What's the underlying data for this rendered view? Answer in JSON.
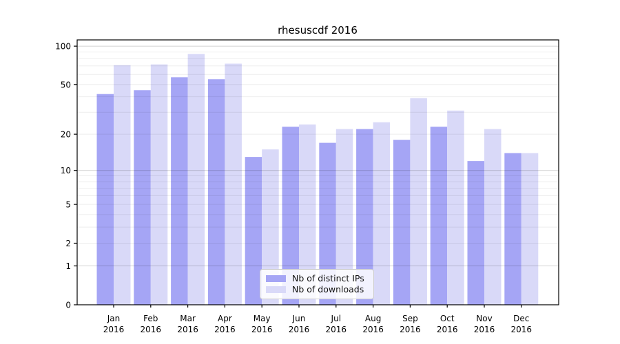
{
  "chart_data": {
    "type": "bar",
    "title": "rhesuscdf 2016",
    "year": "2016",
    "categories": [
      "Jan",
      "Feb",
      "Mar",
      "Apr",
      "May",
      "Jun",
      "Jul",
      "Aug",
      "Sep",
      "Oct",
      "Nov",
      "Dec"
    ],
    "series": [
      {
        "name": "Nb of distinct IPs",
        "color": "#a5a5f5",
        "values": [
          42,
          45,
          57,
          55,
          13,
          23,
          17,
          22,
          18,
          23,
          12,
          14
        ]
      },
      {
        "name": "Nb of downloads",
        "color": "#d9d9f8",
        "values": [
          71,
          72,
          87,
          73,
          15,
          24,
          22,
          25,
          39,
          31,
          22,
          14
        ]
      }
    ],
    "xlabel": "",
    "ylabel": "",
    "yscale": "log1p",
    "ylim": [
      0,
      112
    ],
    "yticks": [
      0,
      1,
      2,
      5,
      10,
      20,
      50,
      100
    ],
    "major_gridlines": [
      1,
      10,
      100
    ],
    "minor_gridlines": [
      2,
      3,
      4,
      5,
      6,
      7,
      8,
      9,
      20,
      30,
      40,
      50,
      60,
      70,
      80,
      90
    ],
    "grid": true,
    "legend_position": "lower-center",
    "colors": {
      "axis": "#000000",
      "text": "#000000",
      "major_grid": "rgba(0,0,0,0.18)",
      "minor_grid": "rgba(0,0,0,0.07)",
      "background": "#ffffff"
    }
  }
}
